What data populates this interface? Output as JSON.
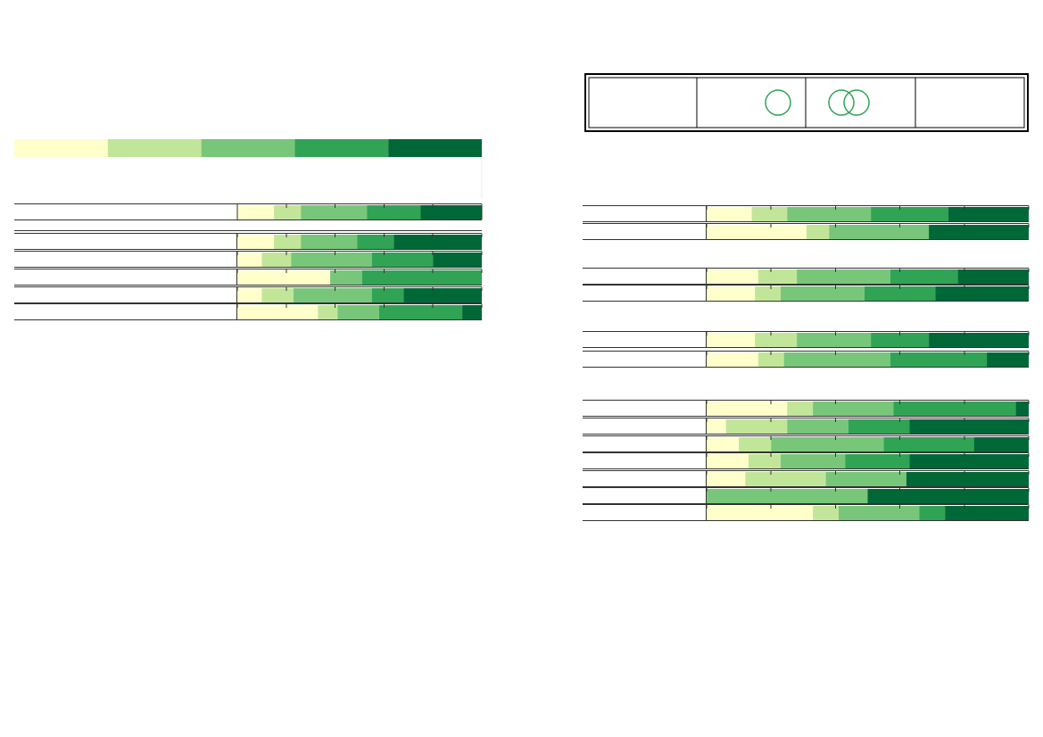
{
  "chart_data": [
    {
      "type": "stacked-hbar",
      "categories": [
        null,
        null,
        null,
        null,
        null,
        null
      ],
      "series": [
        {
          "color": "#ffffcc",
          "values": [
            15,
            15,
            10,
            38,
            10,
            33
          ]
        },
        {
          "color": "#c2e699",
          "values": [
            11,
            11,
            12,
            0,
            13,
            8
          ]
        },
        {
          "color": "#78c679",
          "values": [
            27,
            23,
            33,
            13,
            32,
            17
          ]
        },
        {
          "color": "#31a354",
          "values": [
            22,
            15,
            25,
            49,
            13,
            34
          ]
        },
        {
          "color": "#006837",
          "values": [
            25,
            36,
            20,
            0,
            32,
            8
          ]
        }
      ],
      "xlim": [
        0,
        100
      ],
      "xticks": [
        0,
        20,
        40,
        60,
        80,
        100
      ],
      "legend": "top"
    },
    {
      "type": "stacked-hbar",
      "categories": [
        null,
        null,
        null,
        null,
        null,
        null,
        null,
        null,
        null,
        null,
        null,
        null,
        null
      ],
      "series": [
        {
          "color": "#ffffcc",
          "values": [
            14,
            31,
            16,
            15,
            15,
            16,
            25,
            6,
            10,
            13,
            12,
            0,
            33
          ]
        },
        {
          "color": "#c2e699",
          "values": [
            11,
            7,
            12,
            8,
            13,
            8,
            8,
            19,
            10,
            10,
            25,
            0,
            8
          ]
        },
        {
          "color": "#78c679",
          "values": [
            26,
            31,
            29,
            26,
            23,
            33,
            25,
            19,
            35,
            20,
            25,
            50,
            25
          ]
        },
        {
          "color": "#31a354",
          "values": [
            24,
            0,
            21,
            22,
            18,
            30,
            38,
            19,
            28,
            20,
            0,
            0,
            8
          ]
        },
        {
          "color": "#006837",
          "values": [
            25,
            31,
            22,
            29,
            31,
            13,
            4,
            37,
            17,
            37,
            38,
            50,
            26
          ]
        }
      ],
      "xlim": [
        0,
        100
      ],
      "xticks": [
        0,
        20,
        40,
        60,
        80,
        100
      ]
    }
  ]
}
